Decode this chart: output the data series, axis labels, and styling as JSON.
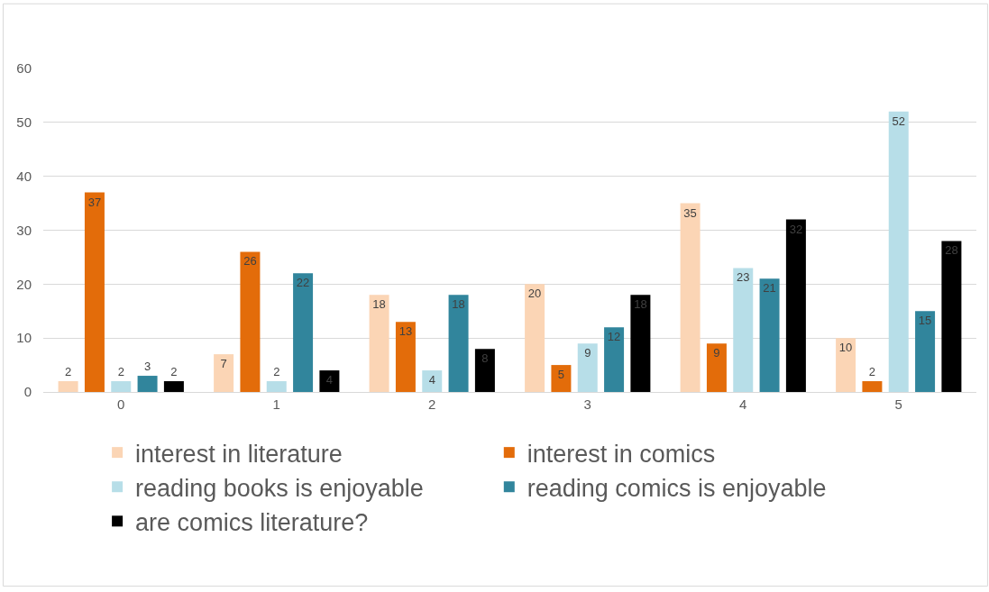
{
  "chart_data": {
    "type": "bar",
    "categories": [
      "0",
      "1",
      "2",
      "3",
      "4",
      "5"
    ],
    "series": [
      {
        "name": "interest in literature",
        "color": "#fbd5b5",
        "values": [
          2,
          7,
          18,
          20,
          35,
          10
        ]
      },
      {
        "name": "interest in comics",
        "color": "#e36c0a",
        "values": [
          37,
          26,
          13,
          5,
          9,
          2
        ]
      },
      {
        "name": "reading books is enjoyable",
        "color": "#b7dee8",
        "values": [
          2,
          2,
          4,
          9,
          23,
          52
        ]
      },
      {
        "name": "reading comics is enjoyable",
        "color": "#31859c",
        "values": [
          3,
          22,
          18,
          12,
          21,
          15
        ]
      },
      {
        "name": "are comics literature?",
        "color": "#000000",
        "values": [
          2,
          4,
          8,
          18,
          32,
          28
        ]
      }
    ],
    "ylim": [
      0,
      60
    ],
    "yticks": [
      0,
      10,
      20,
      30,
      40,
      50,
      60
    ],
    "grid": "y",
    "legend": "bottom",
    "data_labels": true
  }
}
